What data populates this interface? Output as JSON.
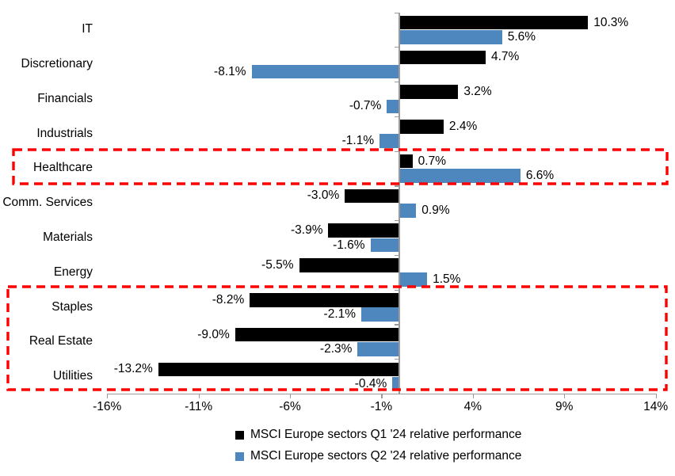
{
  "chart_data": {
    "type": "bar",
    "orientation": "horizontal",
    "title": "",
    "xlabel": "",
    "ylabel": "",
    "xlim": [
      -16,
      14
    ],
    "grid": false,
    "legend_position": "bottom",
    "categories": [
      "IT",
      "Discretionary",
      "Financials",
      "Industrials",
      "Healthcare",
      "Comm. Services",
      "Materials",
      "Energy",
      "Staples",
      "Real Estate",
      "Utilities"
    ],
    "series": [
      {
        "name": "MSCI Europe sectors Q1 '24 relative performance",
        "color": "#000000",
        "values": [
          10.3,
          4.7,
          3.2,
          2.4,
          0.7,
          -3.0,
          -3.9,
          -5.5,
          -8.2,
          -9.0,
          -13.2
        ],
        "value_labels": [
          "10.3%",
          "4.7%",
          "3.2%",
          "2.4%",
          "0.7%",
          "-3.0%",
          "-3.9%",
          "-5.5%",
          "-8.2%",
          "-9.0%",
          "-13.2%"
        ]
      },
      {
        "name": "MSCI Europe sectors Q2 '24 relative performance",
        "color": "#4E86BE",
        "values": [
          5.6,
          -8.1,
          -0.7,
          -1.1,
          6.6,
          0.9,
          -1.6,
          1.5,
          -2.1,
          -2.3,
          -0.4
        ],
        "value_labels": [
          "5.6%",
          "-8.1%",
          "-0.7%",
          "-1.1%",
          "6.6%",
          "0.9%",
          "-1.6%",
          "1.5%",
          "-2.1%",
          "-2.3%",
          "-0.4%"
        ]
      }
    ],
    "x_ticks": [
      {
        "value": -16,
        "label": "-16%"
      },
      {
        "value": -11,
        "label": "-11%"
      },
      {
        "value": -6,
        "label": "-6%"
      },
      {
        "value": -1,
        "label": "-1%"
      },
      {
        "value": 4,
        "label": "4%"
      },
      {
        "value": 9,
        "label": "9%"
      },
      {
        "value": 14,
        "label": "14%"
      }
    ],
    "annotations": [
      {
        "type": "highlight-box",
        "style": "red-dashed",
        "categories": [
          "Healthcare"
        ]
      },
      {
        "type": "highlight-box",
        "style": "red-dashed",
        "categories": [
          "Staples",
          "Real Estate",
          "Utilities"
        ]
      }
    ]
  },
  "colors": {
    "axis": "#9b9b9b",
    "highlight": "#ff0000",
    "background": "#ffffff",
    "text": "#000000"
  }
}
